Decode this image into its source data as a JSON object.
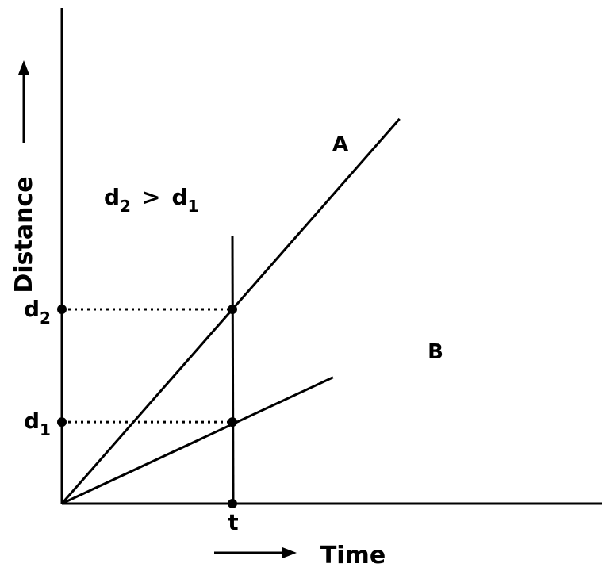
{
  "chart_data": {
    "type": "line",
    "xlabel": "Time",
    "ylabel": "Distance",
    "series": [
      {
        "name": "A",
        "x": [
          0,
          1.0,
          1.98
        ],
        "y": [
          0,
          1.0,
          1.98
        ]
      },
      {
        "name": "B",
        "x": [
          0,
          1.0,
          1.59
        ],
        "y": [
          0,
          0.42,
          0.65
        ]
      }
    ],
    "marked_time": {
      "label": "t",
      "value": 1.0
    },
    "marked_distances": [
      {
        "label": "d",
        "sub": "2",
        "value": 1.0
      },
      {
        "label": "d",
        "sub": "1",
        "value": 0.42
      }
    ],
    "annotation": {
      "left": "d",
      "left_sub": "2",
      "op": ">",
      "right": "d",
      "right_sub": "1"
    },
    "xlim": [
      0,
      3.0
    ],
    "ylim": [
      0,
      2.55
    ],
    "grid": false,
    "legend": "none",
    "colors": {
      "axis": "#000000",
      "line": "#000000"
    }
  }
}
